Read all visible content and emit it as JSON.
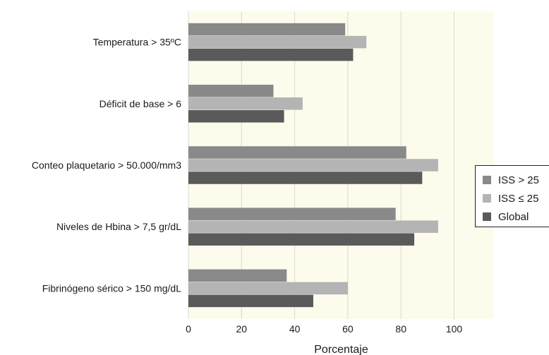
{
  "chart_data": {
    "type": "bar",
    "orientation": "horizontal",
    "categories": [
      "Temperatura > 35ºC",
      "Déficit de base > 6",
      "Conteo plaquetario > 50.000/mm3",
      "Niveles de Hbina > 7,5 gr/dL",
      "Fibrinógeno sérico > 150 mg/dL"
    ],
    "series": [
      {
        "name": "ISS > 25",
        "color": "#898989",
        "values": [
          59,
          32,
          82,
          78,
          37
        ]
      },
      {
        "name": "ISS ≤ 25",
        "color": "#b4b4b4",
        "values": [
          67,
          43,
          94,
          94,
          60
        ]
      },
      {
        "name": "Global",
        "color": "#5a5a5a",
        "values": [
          62,
          36,
          88,
          85,
          47
        ]
      }
    ],
    "xlabel": "Porcentaje",
    "ylabel": "",
    "xlim": [
      0,
      115
    ],
    "xticks": [
      0,
      20,
      40,
      60,
      80,
      100
    ],
    "grid": true,
    "plot_background": "#fdfcec",
    "legend_position": "right"
  }
}
